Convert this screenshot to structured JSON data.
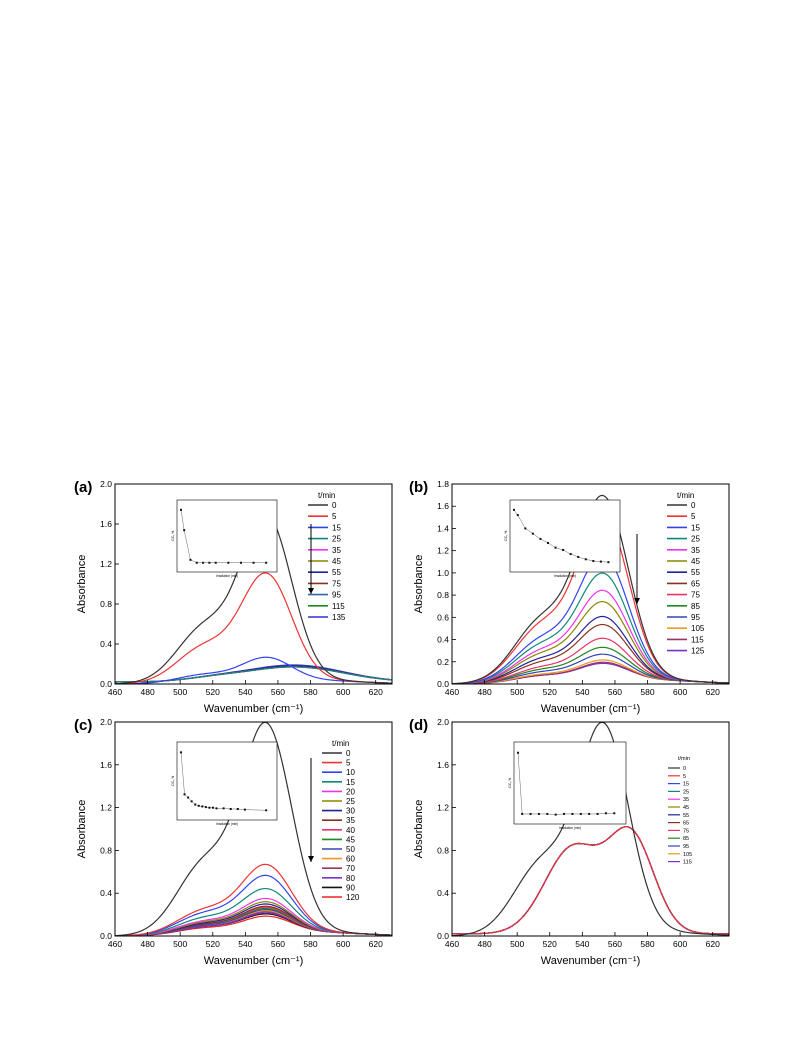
{
  "chart_data": [
    {
      "panel": "(a)",
      "type": "line",
      "xlabel": "Wavenumber (cm⁻¹)",
      "ylabel": "Absorbance",
      "xlim": [
        460,
        630
      ],
      "ylim": [
        0,
        2.0
      ],
      "xticks": [
        460,
        480,
        500,
        520,
        540,
        560,
        580,
        600,
        620
      ],
      "yticks": [
        0.0,
        0.4,
        0.8,
        1.2,
        1.6,
        2.0
      ],
      "legend_title": "t/min",
      "legend_position": "top-right",
      "arrow": "down",
      "series": [
        {
          "name": "0",
          "color": "#333333",
          "peak": 1.65,
          "shoulder": 0.55
        },
        {
          "name": "5",
          "color": "#ee3333",
          "peak": 1.07,
          "shoulder": 0.36
        },
        {
          "name": "15",
          "color": "#3344ee",
          "peak": 0.25,
          "shoulder": 0.09
        },
        {
          "name": "25",
          "color": "#118877",
          "peak": 0.15,
          "shoulder": 0.07,
          "flat": true
        },
        {
          "name": "35",
          "color": "#ee33ee",
          "peak": 0.15,
          "shoulder": 0.07,
          "flat": true
        },
        {
          "name": "45",
          "color": "#888800",
          "peak": 0.15,
          "shoulder": 0.07,
          "flat": true
        },
        {
          "name": "55",
          "color": "#222299",
          "peak": 0.16,
          "shoulder": 0.07,
          "flat": true
        },
        {
          "name": "75",
          "color": "#883322",
          "peak": 0.16,
          "shoulder": 0.07,
          "flat": true
        },
        {
          "name": "95",
          "color": "#3366aa",
          "peak": 0.16,
          "shoulder": 0.07,
          "flat": true
        },
        {
          "name": "115",
          "color": "#228822",
          "peak": 0.16,
          "shoulder": 0.07,
          "flat": true
        },
        {
          "name": "135",
          "color": "#3333cc",
          "peak": 0.17,
          "shoulder": 0.07,
          "flat": true
        }
      ],
      "inset": {
        "xlabel": "Irradiation (min)",
        "ylabel": "C/C₀ %",
        "x": [
          0,
          5,
          15,
          25,
          35,
          45,
          55,
          75,
          95,
          115,
          135
        ],
        "y": [
          100,
          65,
          14,
          9,
          9,
          9,
          9,
          9,
          9,
          9,
          9
        ]
      }
    },
    {
      "panel": "(b)",
      "type": "line",
      "xlabel": "Wavenumber (cm⁻¹)",
      "ylabel": "Absorbance",
      "xlim": [
        460,
        630
      ],
      "ylim": [
        0,
        1.8
      ],
      "xticks": [
        460,
        480,
        500,
        520,
        540,
        560,
        580,
        600,
        620
      ],
      "yticks": [
        0.0,
        0.2,
        0.4,
        0.6,
        0.8,
        1.0,
        1.2,
        1.4,
        1.6,
        1.8
      ],
      "legend_title": "t/min",
      "legend_position": "top-right",
      "arrow": "down",
      "series": [
        {
          "name": "0",
          "color": "#333333",
          "peak": 1.64,
          "shoulder": 0.55
        },
        {
          "name": "5",
          "color": "#ee3333",
          "peak": 1.49,
          "shoulder": 0.5
        },
        {
          "name": "15",
          "color": "#3344ee",
          "peak": 1.12,
          "shoulder": 0.38
        },
        {
          "name": "25",
          "color": "#118877",
          "peak": 0.96,
          "shoulder": 0.33
        },
        {
          "name": "35",
          "color": "#ee33ee",
          "peak": 0.81,
          "shoulder": 0.28
        },
        {
          "name": "45",
          "color": "#888800",
          "peak": 0.71,
          "shoulder": 0.25
        },
        {
          "name": "55",
          "color": "#222299",
          "peak": 0.58,
          "shoulder": 0.21
        },
        {
          "name": "65",
          "color": "#883322",
          "peak": 0.51,
          "shoulder": 0.18
        },
        {
          "name": "75",
          "color": "#ee3366",
          "peak": 0.39,
          "shoulder": 0.14
        },
        {
          "name": "85",
          "color": "#228822",
          "peak": 0.31,
          "shoulder": 0.12
        },
        {
          "name": "95",
          "color": "#3344bb",
          "peak": 0.25,
          "shoulder": 0.1
        },
        {
          "name": "105",
          "color": "#ee9922",
          "peak": 0.2,
          "shoulder": 0.08
        },
        {
          "name": "115",
          "color": "#993366",
          "peak": 0.18,
          "shoulder": 0.07
        },
        {
          "name": "125",
          "color": "#7733cc",
          "peak": 0.17,
          "shoulder": 0.07
        }
      ],
      "inset": {
        "xlabel": "Irradiation (min)",
        "ylabel": "C/C₀ %",
        "x": [
          0,
          5,
          15,
          25,
          35,
          45,
          55,
          65,
          75,
          85,
          95,
          105,
          115,
          125
        ],
        "y": [
          100,
          91,
          68,
          59,
          50,
          43,
          35,
          31,
          24,
          19,
          15,
          12,
          11,
          10
        ]
      }
    },
    {
      "panel": "(c)",
      "type": "line",
      "xlabel": "Wavenumber (cm⁻¹)",
      "ylabel": "Absorbance",
      "xlim": [
        460,
        630
      ],
      "ylim": [
        0,
        2.0
      ],
      "xticks": [
        460,
        480,
        500,
        520,
        540,
        560,
        580,
        600,
        620
      ],
      "yticks": [
        0.0,
        0.4,
        0.8,
        1.2,
        1.6,
        2.0
      ],
      "legend_title": "t/min",
      "legend_position": "top-right",
      "arrow": "down",
      "series": [
        {
          "name": "0",
          "color": "#333333",
          "peak": 1.93,
          "shoulder": 0.66
        },
        {
          "name": "5",
          "color": "#ee3333",
          "peak": 0.64,
          "shoulder": 0.23
        },
        {
          "name": "10",
          "color": "#3344ee",
          "peak": 0.54,
          "shoulder": 0.2
        },
        {
          "name": "15",
          "color": "#118877",
          "peak": 0.42,
          "shoulder": 0.16
        },
        {
          "name": "20",
          "color": "#ee33ee",
          "peak": 0.33,
          "shoulder": 0.13
        },
        {
          "name": "25",
          "color": "#888800",
          "peak": 0.3,
          "shoulder": 0.12
        },
        {
          "name": "30",
          "color": "#222299",
          "peak": 0.28,
          "shoulder": 0.11
        },
        {
          "name": "35",
          "color": "#883322",
          "peak": 0.26,
          "shoulder": 0.1
        },
        {
          "name": "40",
          "color": "#ee3366",
          "peak": 0.25,
          "shoulder": 0.1
        },
        {
          "name": "45",
          "color": "#228822",
          "peak": 0.24,
          "shoulder": 0.1
        },
        {
          "name": "50",
          "color": "#3344bb",
          "peak": 0.23,
          "shoulder": 0.09
        },
        {
          "name": "60",
          "color": "#ee9922",
          "peak": 0.22,
          "shoulder": 0.09
        },
        {
          "name": "70",
          "color": "#993366",
          "peak": 0.21,
          "shoulder": 0.09
        },
        {
          "name": "80",
          "color": "#7733cc",
          "peak": 0.2,
          "shoulder": 0.08
        },
        {
          "name": "90",
          "color": "#111111",
          "peak": 0.19,
          "shoulder": 0.08
        },
        {
          "name": "120",
          "color": "#ee2222",
          "peak": 0.17,
          "shoulder": 0.07
        }
      ],
      "inset": {
        "xlabel": "Irradiation (min)",
        "ylabel": "C/C₀ %",
        "x": [
          0,
          5,
          10,
          15,
          20,
          25,
          30,
          35,
          40,
          45,
          50,
          60,
          70,
          80,
          90,
          120
        ],
        "y": [
          100,
          34,
          29,
          23,
          18,
          16,
          15,
          14,
          13,
          13,
          12,
          12,
          11,
          11,
          10,
          9
        ]
      }
    },
    {
      "panel": "(d)",
      "type": "line",
      "xlabel": "Wavenumber (cm⁻¹)",
      "ylabel": "Absorbance",
      "xlim": [
        460,
        630
      ],
      "ylim": [
        0,
        2.0
      ],
      "xticks": [
        460,
        480,
        500,
        520,
        540,
        560,
        580,
        600,
        620
      ],
      "yticks": [
        0.0,
        0.4,
        0.8,
        1.2,
        1.6,
        2.0
      ],
      "legend_title": "t/min",
      "legend_position": "top-right",
      "series": [
        {
          "name": "0",
          "color": "#333333",
          "peak": 1.93,
          "shoulder": 0.66
        },
        {
          "name": "5",
          "color": "#ee3333",
          "double": true
        },
        {
          "name": "15",
          "color": "#3344ee",
          "double": true
        },
        {
          "name": "25",
          "color": "#118877",
          "double": true
        },
        {
          "name": "35",
          "color": "#ee33ee",
          "double": true
        },
        {
          "name": "45",
          "color": "#888800",
          "double": true
        },
        {
          "name": "55",
          "color": "#222299",
          "double": true
        },
        {
          "name": "65",
          "color": "#883322",
          "double": true
        },
        {
          "name": "75",
          "color": "#ee3366",
          "double": true
        },
        {
          "name": "85",
          "color": "#228822",
          "double": true
        },
        {
          "name": "95",
          "color": "#3344bb",
          "double": true
        },
        {
          "name": "105",
          "color": "#ee9922",
          "double": true
        },
        {
          "name": "115",
          "color": "#7733cc",
          "double": true
        }
      ],
      "inset": {
        "xlabel": "Irradiation (min)",
        "ylabel": "C/C₀ %",
        "x": [
          0,
          5,
          15,
          25,
          35,
          45,
          55,
          65,
          75,
          85,
          95,
          105,
          115
        ],
        "y": [
          100,
          9,
          9,
          9,
          9,
          8,
          9,
          9,
          9,
          9,
          9,
          10,
          10
        ]
      }
    }
  ]
}
